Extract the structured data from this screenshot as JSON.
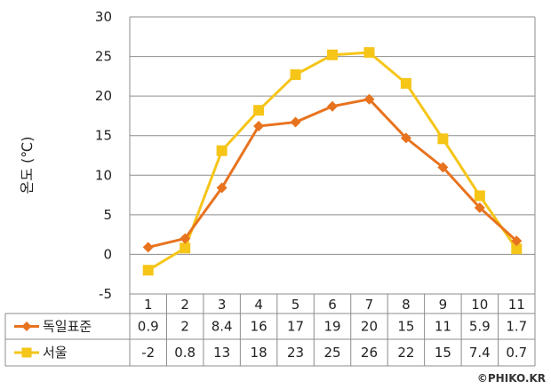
{
  "chart_data": {
    "type": "line",
    "x": [
      "1",
      "2",
      "3",
      "4",
      "5",
      "6",
      "7",
      "8",
      "9",
      "10",
      "11"
    ],
    "series": [
      {
        "name": "독일표준",
        "values": [
          0.9,
          2,
          8.4,
          16.2,
          16.7,
          18.7,
          19.6,
          14.7,
          11,
          5.9,
          1.7
        ],
        "labels": [
          "0.9",
          "2",
          "8.4",
          "16",
          "17",
          "19",
          "20",
          "15",
          "11",
          "5.9",
          "1.7"
        ],
        "color": "#E8731E",
        "marker": "diamond"
      },
      {
        "name": "서울",
        "values": [
          -2,
          0.8,
          13.1,
          18.2,
          22.7,
          25.2,
          25.5,
          21.6,
          14.6,
          7.4,
          0.7
        ],
        "labels": [
          "-2",
          "0.8",
          "13",
          "18",
          "23",
          "25",
          "26",
          "22",
          "15",
          "7.4",
          "0.7"
        ],
        "color": "#F5C518",
        "marker": "square"
      }
    ],
    "ylabel": "온도 (℃)",
    "ylim": [
      -5,
      30
    ],
    "yticks": [
      "-5",
      "0",
      "5",
      "10",
      "15",
      "20",
      "25",
      "30"
    ],
    "grid": true,
    "legend": "data-table",
    "watermark": "©PHIKO.KR"
  }
}
